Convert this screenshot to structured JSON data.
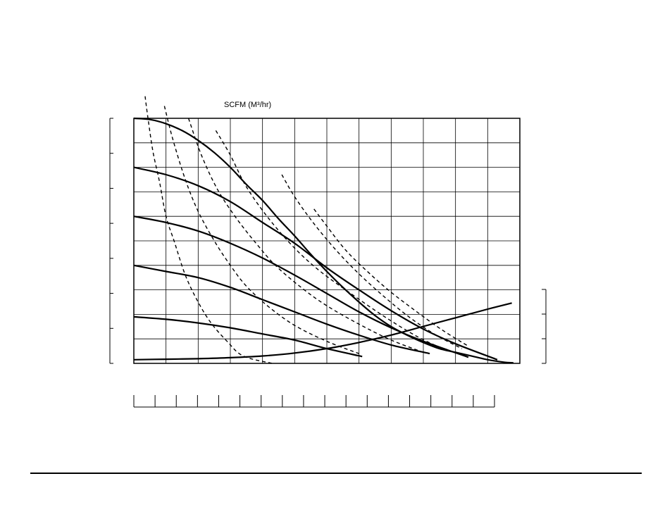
{
  "chart_data": {
    "type": "line",
    "title": "SCFM (M³/hr)",
    "xlabel": "",
    "ylabel": "",
    "xlim": [
      0,
      12
    ],
    "ylim": [
      0,
      10
    ],
    "y2lim": [
      0,
      3
    ],
    "grid": true,
    "legend": "none",
    "pressure_curves": [
      {
        "x": [
          0,
          0.5,
          1,
          1.5,
          2,
          2.5,
          3,
          3.5,
          4,
          4.5,
          5,
          5.5,
          6,
          6.5,
          7,
          7.5,
          8,
          8.5,
          9,
          9.5,
          10,
          10.5,
          11,
          11.5,
          11.8
        ],
        "y": [
          10,
          9.95,
          9.78,
          9.5,
          9.1,
          8.6,
          8.0,
          7.3,
          6.65,
          5.9,
          5.2,
          4.45,
          3.75,
          3.1,
          2.5,
          1.95,
          1.5,
          1.15,
          0.85,
          0.6,
          0.45,
          0.3,
          0.15,
          0.05,
          0.02
        ]
      },
      {
        "x": [
          0,
          1,
          2,
          3,
          4,
          5,
          6,
          7,
          8,
          9,
          10,
          11.3
        ],
        "y": [
          8,
          7.7,
          7.25,
          6.6,
          5.75,
          4.9,
          3.9,
          3.0,
          2.15,
          1.4,
          0.8,
          0.15
        ]
      },
      {
        "x": [
          0,
          1,
          2,
          3,
          4,
          5,
          6,
          7,
          8,
          9,
          10.4
        ],
        "y": [
          6,
          5.75,
          5.4,
          4.9,
          4.3,
          3.6,
          2.85,
          2.1,
          1.45,
          0.9,
          0.25
        ]
      },
      {
        "x": [
          0,
          1,
          2,
          3,
          4,
          5,
          6,
          7,
          8,
          9.2
        ],
        "y": [
          4,
          3.75,
          3.5,
          3.1,
          2.6,
          2.1,
          1.6,
          1.15,
          0.75,
          0.4
        ]
      },
      {
        "x": [
          0,
          1,
          2,
          3,
          4,
          5,
          6,
          7.1
        ],
        "y": [
          1.9,
          1.8,
          1.65,
          1.45,
          1.2,
          0.95,
          0.6,
          0.28
        ]
      }
    ],
    "efficiency_curves": [
      {
        "x": [
          0.35,
          0.45,
          0.6,
          0.8,
          1.0,
          1.25,
          1.6,
          2.0,
          2.4,
          2.9,
          3.4,
          4.3
        ],
        "y": [
          10.9,
          9.9,
          8.6,
          7.4,
          6.0,
          5.0,
          3.6,
          2.5,
          1.65,
          0.9,
          0.3,
          0
        ]
      },
      {
        "x": [
          0.95,
          1.2,
          1.6,
          2.0,
          2.5,
          3.0,
          3.5,
          4.2,
          5.0,
          6.0,
          7.0
        ],
        "y": [
          10.5,
          9.2,
          7.5,
          6.2,
          5.0,
          4.0,
          3.15,
          2.3,
          1.55,
          0.9,
          0.4
        ]
      },
      {
        "x": [
          1.7,
          2.1,
          2.6,
          3.2,
          3.8,
          4.4,
          5.2,
          6.0,
          7.0,
          8.0,
          9.0
        ],
        "y": [
          10.0,
          8.5,
          7.1,
          5.9,
          4.9,
          4.0,
          3.1,
          2.35,
          1.6,
          0.95,
          0.45
        ]
      },
      {
        "x": [
          2.55,
          3.0,
          3.5,
          4.2,
          5.0,
          5.8,
          6.8,
          7.8,
          8.8,
          9.6
        ],
        "y": [
          9.5,
          8.5,
          7.2,
          5.9,
          4.7,
          3.75,
          2.8,
          1.9,
          1.1,
          0.6
        ]
      },
      {
        "x": [
          4.6,
          5.0,
          5.6,
          6.3,
          7.0,
          7.8,
          8.6,
          9.4,
          10.2
        ],
        "y": [
          7.7,
          6.8,
          5.7,
          4.6,
          3.65,
          2.7,
          1.85,
          1.15,
          0.6
        ]
      },
      {
        "x": [
          5.6,
          6.0,
          6.6,
          7.3,
          8.0,
          8.8,
          9.6,
          10.4
        ],
        "y": [
          6.3,
          5.6,
          4.6,
          3.7,
          2.9,
          2.1,
          1.35,
          0.7
        ]
      }
    ],
    "rising_curve": {
      "axis": "y2",
      "x": [
        0,
        1,
        2,
        3,
        4,
        5,
        6,
        7,
        8,
        9,
        10,
        11,
        11.75
      ],
      "y": [
        0.15,
        0.17,
        0.19,
        0.23,
        0.3,
        0.42,
        0.6,
        0.85,
        1.15,
        1.5,
        1.85,
        2.2,
        2.45
      ]
    },
    "x_tick_count": 12,
    "y_tick_count": 10,
    "bottom_scale_tick_count": 17,
    "left_axis_tick_count": 7,
    "right_axis_tick_count": 3
  }
}
